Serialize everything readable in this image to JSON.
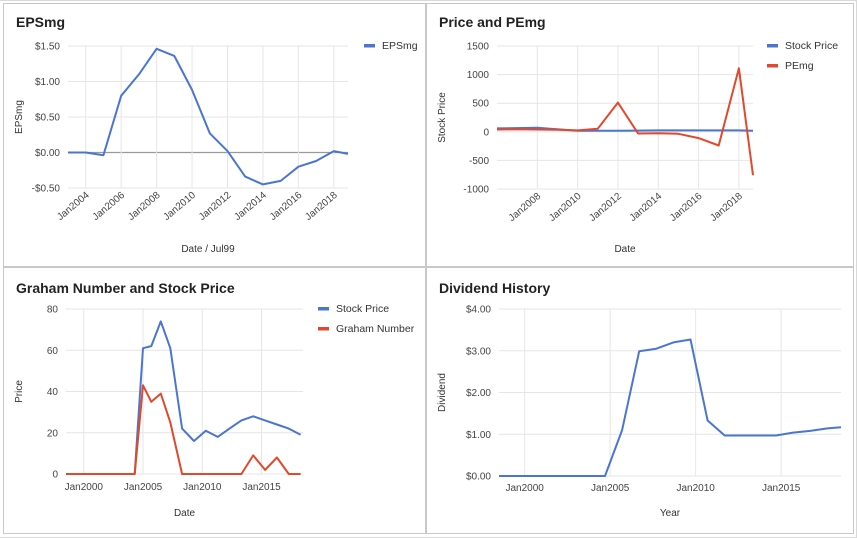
{
  "chart_data": [
    {
      "id": "eps",
      "type": "line",
      "title": "EPSmg",
      "xlabel": "Date / Jul99",
      "ylabel": "EPSmg",
      "x_ticks": [
        2004,
        2006,
        2008,
        2010,
        2012,
        2014,
        2016,
        2018
      ],
      "x_tick_labels": [
        "Jan2004",
        "Jan2006",
        "Jan2008",
        "Jan2010",
        "Jan2012",
        "Jan2014",
        "Jan2016",
        "Jan2018"
      ],
      "xlim": [
        2003.0,
        2018.8
      ],
      "y_ticks": [
        -0.5,
        0,
        0.5,
        1.0,
        1.5
      ],
      "y_tick_labels": [
        "-$0.50",
        "$0.00",
        "$0.50",
        "$1.00",
        "$1.50"
      ],
      "ylim": [
        -0.5,
        1.5
      ],
      "zero_line": true,
      "legend": "right",
      "series": [
        {
          "name": "EPSmg",
          "color": "#4a76cf",
          "x": [
            2003.0,
            2004.0,
            2005.0,
            2006.0,
            2007.0,
            2008.0,
            2009.0,
            2010.0,
            2011.0,
            2012.0,
            2013.0,
            2014.0,
            2015.0,
            2016.0,
            2017.0,
            2018.0,
            2018.8
          ],
          "y": [
            0.0,
            0.0,
            -0.04,
            0.8,
            1.1,
            1.46,
            1.36,
            0.88,
            0.27,
            0.02,
            -0.34,
            -0.45,
            -0.4,
            -0.2,
            -0.12,
            0.02,
            -0.02
          ]
        }
      ]
    },
    {
      "id": "pe",
      "type": "line",
      "title": "Price and PEmg",
      "xlabel": "Date",
      "ylabel": "Stock Price",
      "x_ticks": [
        2008,
        2010,
        2012,
        2014,
        2016,
        2018
      ],
      "x_tick_labels": [
        "Jan2008",
        "Jan2010",
        "Jan2012",
        "Jan2014",
        "Jan2016",
        "Jan2018"
      ],
      "xlim": [
        2006.0,
        2018.7
      ],
      "y_ticks": [
        -1000,
        -500,
        0,
        500,
        1000,
        1500
      ],
      "y_tick_labels": [
        "-1000",
        "-500",
        "0",
        "500",
        "1000",
        "1500"
      ],
      "ylim": [
        -1000,
        1500
      ],
      "legend": "right",
      "series": [
        {
          "name": "Stock Price",
          "color": "#4a76cf",
          "x": [
            2006.0,
            2008.0,
            2010.0,
            2012.0,
            2014.0,
            2016.0,
            2018.0,
            2018.7
          ],
          "y": [
            60,
            70,
            20,
            20,
            25,
            25,
            25,
            20
          ]
        },
        {
          "name": "PEmg",
          "color": "#e0492c",
          "x": [
            2006.0,
            2007.0,
            2008.0,
            2009.0,
            2010.0,
            2011.0,
            2012.0,
            2013.0,
            2014.0,
            2015.0,
            2016.0,
            2017.0,
            2018.0,
            2018.7
          ],
          "y": [
            40,
            45,
            40,
            35,
            25,
            55,
            510,
            -30,
            -25,
            -35,
            -110,
            -240,
            1110,
            -760
          ]
        }
      ]
    },
    {
      "id": "graham",
      "type": "line",
      "title": "Graham Number and Stock Price",
      "xlabel": "Date",
      "ylabel": "Price",
      "x_ticks": [
        2000,
        2005,
        2010,
        2015
      ],
      "x_tick_labels": [
        "Jan2000",
        "Jan2005",
        "Jan2010",
        "Jan2015"
      ],
      "xlim": [
        1998.5,
        2018.5
      ],
      "y_ticks": [
        0,
        20,
        40,
        60,
        80
      ],
      "y_tick_labels": [
        "0",
        "20",
        "40",
        "60",
        "80"
      ],
      "ylim": [
        0,
        80
      ],
      "legend": "right",
      "series": [
        {
          "name": "Stock Price",
          "color": "#4a76cf",
          "x": [
            2004.3,
            2005.0,
            2005.7,
            2006.5,
            2007.3,
            2008.3,
            2009.3,
            2010.3,
            2011.3,
            2012.3,
            2013.3,
            2014.3,
            2015.3,
            2016.3,
            2017.3,
            2018.3
          ],
          "y": [
            0,
            61,
            62,
            74,
            61,
            22,
            16,
            21,
            18,
            22,
            26,
            28,
            26,
            24,
            22,
            19
          ]
        },
        {
          "name": "Graham Number",
          "color": "#e0492c",
          "x": [
            1998.5,
            2004.3,
            2005.0,
            2005.7,
            2006.5,
            2007.3,
            2008.3,
            2009.3,
            2010.3,
            2011.3,
            2012.3,
            2013.3,
            2014.3,
            2015.3,
            2016.3,
            2017.3,
            2018.3
          ],
          "y": [
            0,
            0,
            43,
            35,
            39,
            25,
            0,
            0,
            0,
            0,
            0,
            0,
            9,
            2,
            8,
            0,
            0
          ]
        }
      ]
    },
    {
      "id": "dividend",
      "type": "line",
      "title": "Dividend History",
      "xlabel": "Year",
      "ylabel": "Dividend",
      "x_ticks": [
        2000,
        2005,
        2010,
        2015
      ],
      "x_tick_labels": [
        "Jan2000",
        "Jan2005",
        "Jan2010",
        "Jan2015"
      ],
      "xlim": [
        1998.5,
        2018.5
      ],
      "y_ticks": [
        0,
        1,
        2,
        3,
        4
      ],
      "y_tick_labels": [
        "$0.00",
        "$1.00",
        "$2.00",
        "$3.00",
        "$4.00"
      ],
      "ylim": [
        0,
        4
      ],
      "legend": "none",
      "series": [
        {
          "name": "",
          "color": "#4a76cf",
          "x": [
            1998.5,
            2000,
            2001,
            2002,
            2003,
            2004,
            2004.7,
            2005.7,
            2006.7,
            2007.7,
            2008.7,
            2009.7,
            2010.7,
            2011.7,
            2012.7,
            2013.7,
            2014.7,
            2015.7,
            2016.7,
            2017.7,
            2018.5
          ],
          "y": [
            0,
            0,
            0,
            0,
            0,
            0,
            0,
            1.1,
            2.99,
            3.05,
            3.2,
            3.27,
            1.33,
            0.97,
            0.97,
            0.97,
            0.97,
            1.04,
            1.08,
            1.14,
            1.17
          ]
        }
      ]
    }
  ]
}
